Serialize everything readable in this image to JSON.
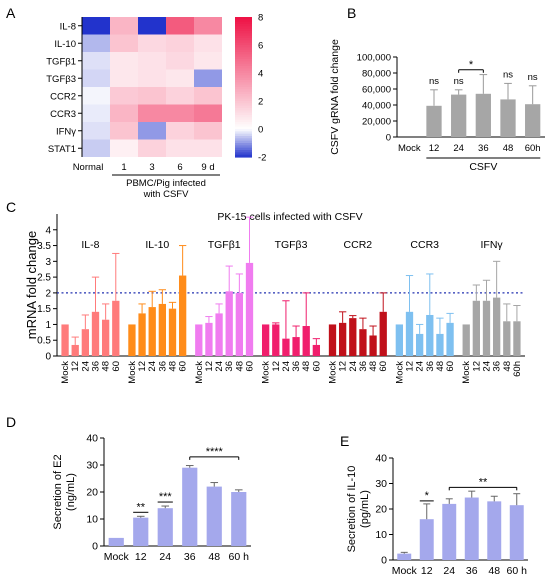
{
  "panel_letters": [
    "A",
    "B",
    "C",
    "D",
    "E"
  ],
  "chart_data": [
    {
      "panel": "A",
      "type": "heatmap",
      "rows": [
        "IL-8",
        "IL-10",
        "TGFβ1",
        "TGFβ3",
        "CCR2",
        "CCR3",
        "IFNγ",
        "STAT1"
      ],
      "columns": [
        "Normal",
        "1",
        "3",
        "6",
        "9 d"
      ],
      "values": [
        [
          -2.0,
          2.5,
          -2.0,
          5.5,
          4.0
        ],
        [
          -0.7,
          2.0,
          1.3,
          1.5,
          1.0
        ],
        [
          -0.3,
          0.8,
          1.0,
          1.3,
          0.8
        ],
        [
          -0.4,
          0.8,
          1.0,
          0.8,
          -1.0
        ],
        [
          -0.1,
          1.8,
          2.0,
          1.5,
          2.0
        ],
        [
          -0.2,
          2.5,
          4.0,
          4.0,
          4.5
        ],
        [
          -0.3,
          2.0,
          -1.0,
          1.5,
          2.0
        ],
        [
          -0.5,
          0.5,
          1.5,
          1.0,
          1.0
        ]
      ],
      "colorbar": {
        "min": -2,
        "max": 8,
        "ticks": [
          -2,
          0,
          2,
          4,
          6,
          8
        ]
      },
      "colors": {
        "low": "#2233cc",
        "mid": "#ffffff",
        "high": "#ee1144"
      },
      "xlabel": "PBMC/Pig infected\nwith CSFV"
    },
    {
      "panel": "B",
      "type": "bar",
      "categories": [
        "Mock",
        "12",
        "24",
        "36",
        "48",
        "60h"
      ],
      "values": [
        0,
        39000,
        53000,
        54000,
        47000,
        41000
      ],
      "errors": [
        0,
        20000,
        6000,
        24000,
        20000,
        23000
      ],
      "ylabel": "CSFV gRNA fold change",
      "xlabel": "CSFV",
      "ylim": [
        0,
        100000
      ],
      "yticks": [
        0,
        20000,
        40000,
        60000,
        80000,
        100000
      ],
      "color": "#a6a6a6",
      "annotations": [
        "ns",
        "ns",
        "ns",
        "ns",
        "*"
      ]
    },
    {
      "panel": "C",
      "type": "bar",
      "title": "PK-15 cells infected with CSFV",
      "ylabel": "mRNA fold change",
      "ylim": [
        0,
        4.5
      ],
      "yticks": [
        0,
        0.5,
        1,
        1.5,
        2,
        2.5,
        3,
        3.5,
        4
      ],
      "reference_line": 2,
      "categories": [
        "Mock",
        "12",
        "24",
        "36",
        "48",
        "60"
      ],
      "last_category_label": "60h",
      "series": [
        {
          "name": "IL-8",
          "color": "#ff7b7b",
          "values": [
            1.0,
            0.35,
            0.85,
            1.4,
            1.15,
            1.75
          ],
          "errors": [
            0,
            0.25,
            0.45,
            1.1,
            0.5,
            1.5
          ]
        },
        {
          "name": "IL-10",
          "color": "#ff8c1a",
          "values": [
            1.0,
            1.35,
            1.55,
            1.65,
            1.5,
            2.55
          ],
          "errors": [
            0,
            0.3,
            0.5,
            0.45,
            0.2,
            0.95
          ]
        },
        {
          "name": "TGFβ1",
          "color": "#f07cf0",
          "values": [
            1.0,
            1.05,
            1.35,
            2.05,
            2.0,
            2.95
          ],
          "errors": [
            0,
            0.2,
            0.3,
            0.8,
            0.6,
            1.45
          ]
        },
        {
          "name": "TGFβ3",
          "color": "#f01e6c",
          "values": [
            1.0,
            1.0,
            0.55,
            0.6,
            0.95,
            0.35
          ],
          "errors": [
            0,
            0.05,
            1.2,
            0.35,
            1.05,
            0.2
          ]
        },
        {
          "name": "CCR2",
          "color": "#c0101a",
          "values": [
            1.0,
            1.05,
            1.2,
            0.85,
            0.65,
            1.4
          ],
          "errors": [
            0,
            0.35,
            0.08,
            0.35,
            0.3,
            0.6
          ]
        },
        {
          "name": "CCR3",
          "color": "#7ec0f0",
          "values": [
            1.0,
            1.4,
            0.7,
            1.3,
            0.7,
            1.05
          ],
          "errors": [
            0,
            1.15,
            0.3,
            1.3,
            0.5,
            0.3
          ]
        },
        {
          "name": "IFNγ",
          "color": "#a6a6a6",
          "values": [
            1.0,
            1.75,
            1.75,
            1.85,
            1.1,
            1.1
          ],
          "errors": [
            0,
            0.5,
            0.65,
            1.15,
            0.55,
            0.5
          ]
        }
      ]
    },
    {
      "panel": "D",
      "type": "bar",
      "categories": [
        "Mock",
        "12",
        "24",
        "36",
        "48",
        "60 h"
      ],
      "values": [
        3,
        10.5,
        14,
        29,
        22,
        20
      ],
      "errors": [
        0,
        0.5,
        0.8,
        0.8,
        1.5,
        0.8
      ],
      "ylabel": "Secretion of E2\n(ng/mL)",
      "ylim": [
        0,
        40
      ],
      "yticks": [
        0,
        10,
        20,
        30,
        40
      ],
      "color": "#a4a8ec",
      "annotations": [
        "**",
        "***",
        "****"
      ]
    },
    {
      "panel": "E",
      "type": "bar",
      "categories": [
        "Mock",
        "12",
        "24",
        "36",
        "48",
        "60 h"
      ],
      "values": [
        2.5,
        16,
        22,
        24.5,
        23,
        21.5
      ],
      "errors": [
        0.5,
        6,
        2,
        2.5,
        2,
        4.5
      ],
      "ylabel": "Secretion of IL-10\n(pg/mL)",
      "ylim": [
        0,
        40
      ],
      "yticks": [
        0,
        10,
        20,
        30,
        40
      ],
      "color": "#a4a8ec",
      "annotations": [
        "*",
        "**"
      ]
    }
  ]
}
